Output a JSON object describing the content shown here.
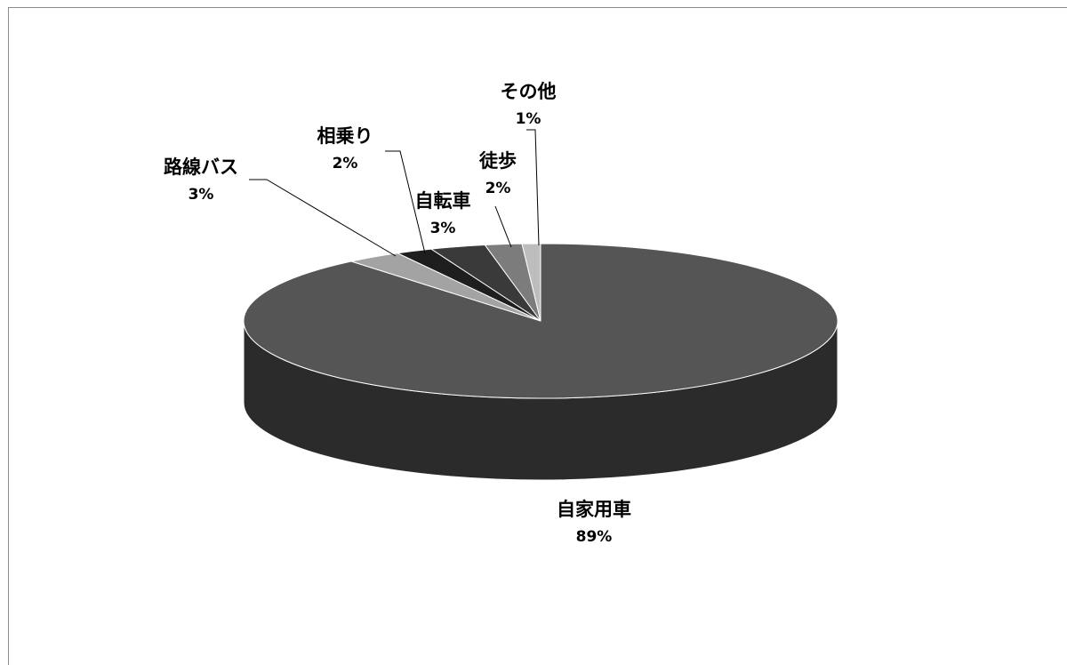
{
  "chart_data": {
    "type": "pie",
    "style": "3d",
    "slices": [
      {
        "label": "自家用車",
        "value": 89,
        "value_label": "89%",
        "color": "#555555",
        "side_color": "#2b2b2b"
      },
      {
        "label": "路線バス",
        "value": 3,
        "value_label": "3%",
        "color": "#a3a3a3",
        "side_color": "#6a6a6a"
      },
      {
        "label": "相乗り",
        "value": 2,
        "value_label": "2%",
        "color": "#1e1e1e",
        "side_color": "#111111"
      },
      {
        "label": "自転車",
        "value": 3,
        "value_label": "3%",
        "color": "#3a3a3a",
        "side_color": "#222222"
      },
      {
        "label": "徒歩",
        "value": 2,
        "value_label": "2%",
        "color": "#7c7c7c",
        "side_color": "#4e4e4e"
      },
      {
        "label": "その他",
        "value": 1,
        "value_label": "1%",
        "color": "#bdbdbd",
        "side_color": "#8a8a8a"
      }
    ]
  }
}
